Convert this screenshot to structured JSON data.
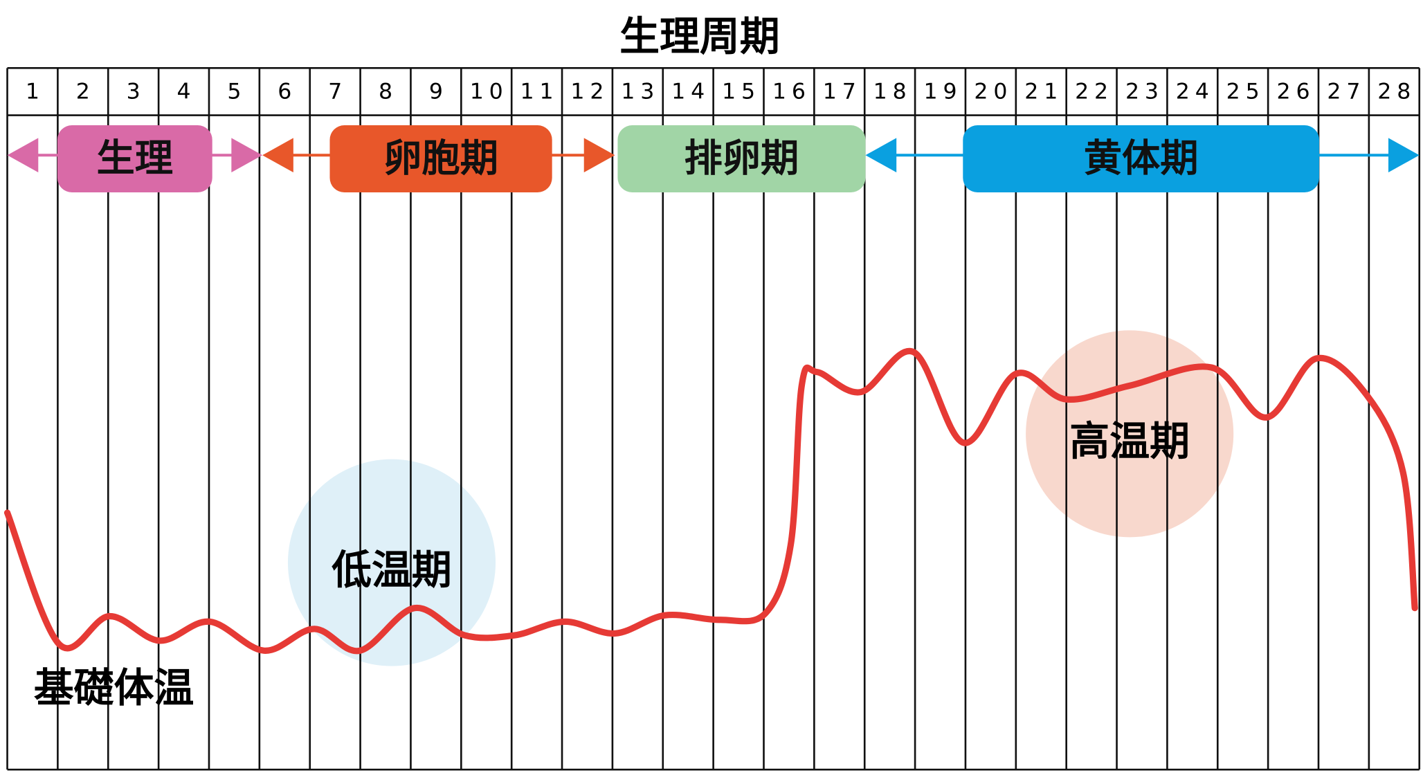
{
  "title": "生理周期",
  "days": [
    1,
    2,
    3,
    4,
    5,
    6,
    7,
    8,
    9,
    10,
    11,
    12,
    13,
    14,
    15,
    16,
    17,
    18,
    19,
    20,
    21,
    22,
    23,
    24,
    25,
    26,
    27,
    28
  ],
  "phases": [
    {
      "label": "生理",
      "color": "#d96aa7",
      "text_color": "#111"
    },
    {
      "label": "卵胞期",
      "color": "#e8572a",
      "text_color": "#111"
    },
    {
      "label": "排卵期",
      "color": "#a1d5a6",
      "text_color": "#111"
    },
    {
      "label": "黄体期",
      "color": "#0aa0e0",
      "text_color": "#111"
    }
  ],
  "zones": [
    {
      "label": "低温期",
      "color": "#dff0f8"
    },
    {
      "label": "高温期",
      "color": "#f8d8cd"
    }
  ],
  "curve_label": "基礎体温",
  "curve_color": "#e63a35"
}
